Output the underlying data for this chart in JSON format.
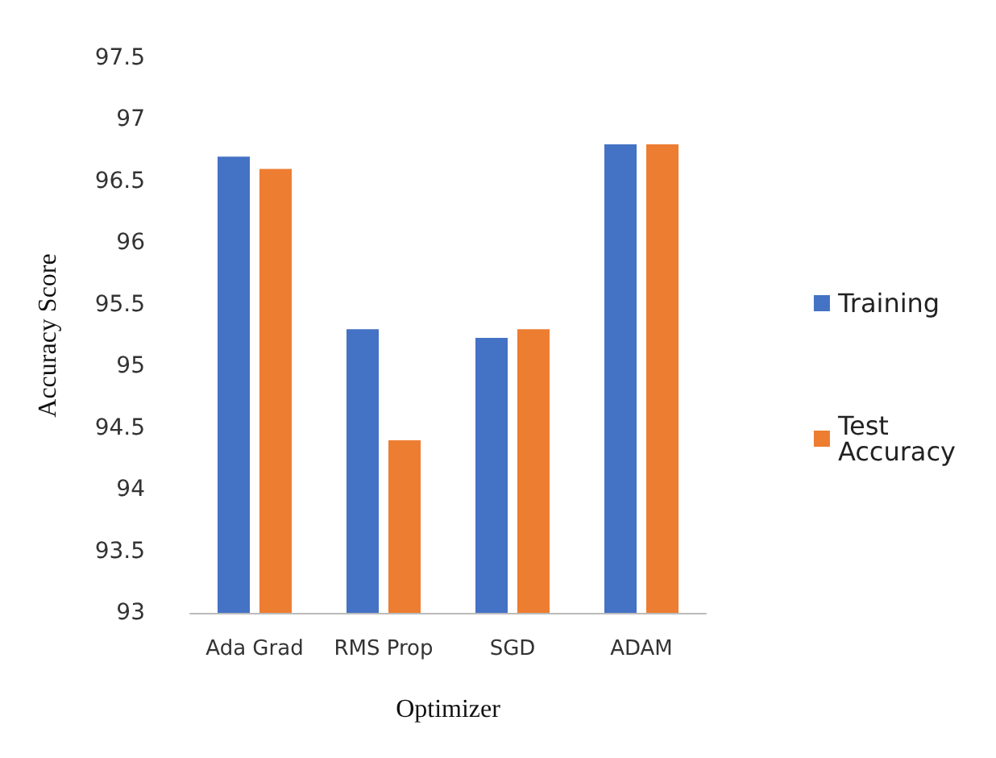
{
  "chart_data": {
    "type": "bar",
    "xlabel": "Optimizer",
    "ylabel": "Accuracy Score",
    "categories": [
      "Ada Grad",
      "RMS Prop",
      "SGD",
      "ADAM"
    ],
    "series": [
      {
        "name": "Training",
        "color": "#4472c4",
        "values": [
          96.7,
          95.3,
          95.23,
          96.8
        ]
      },
      {
        "name": "Test Accuracy",
        "color": "#ed7d31",
        "values": [
          96.6,
          94.4,
          95.3,
          96.8
        ]
      }
    ],
    "ylim": [
      93,
      97.5
    ],
    "yticks": [
      93,
      93.5,
      94,
      94.5,
      95,
      95.5,
      96,
      96.5,
      97,
      97.5
    ],
    "grid": false,
    "legend": "right"
  }
}
